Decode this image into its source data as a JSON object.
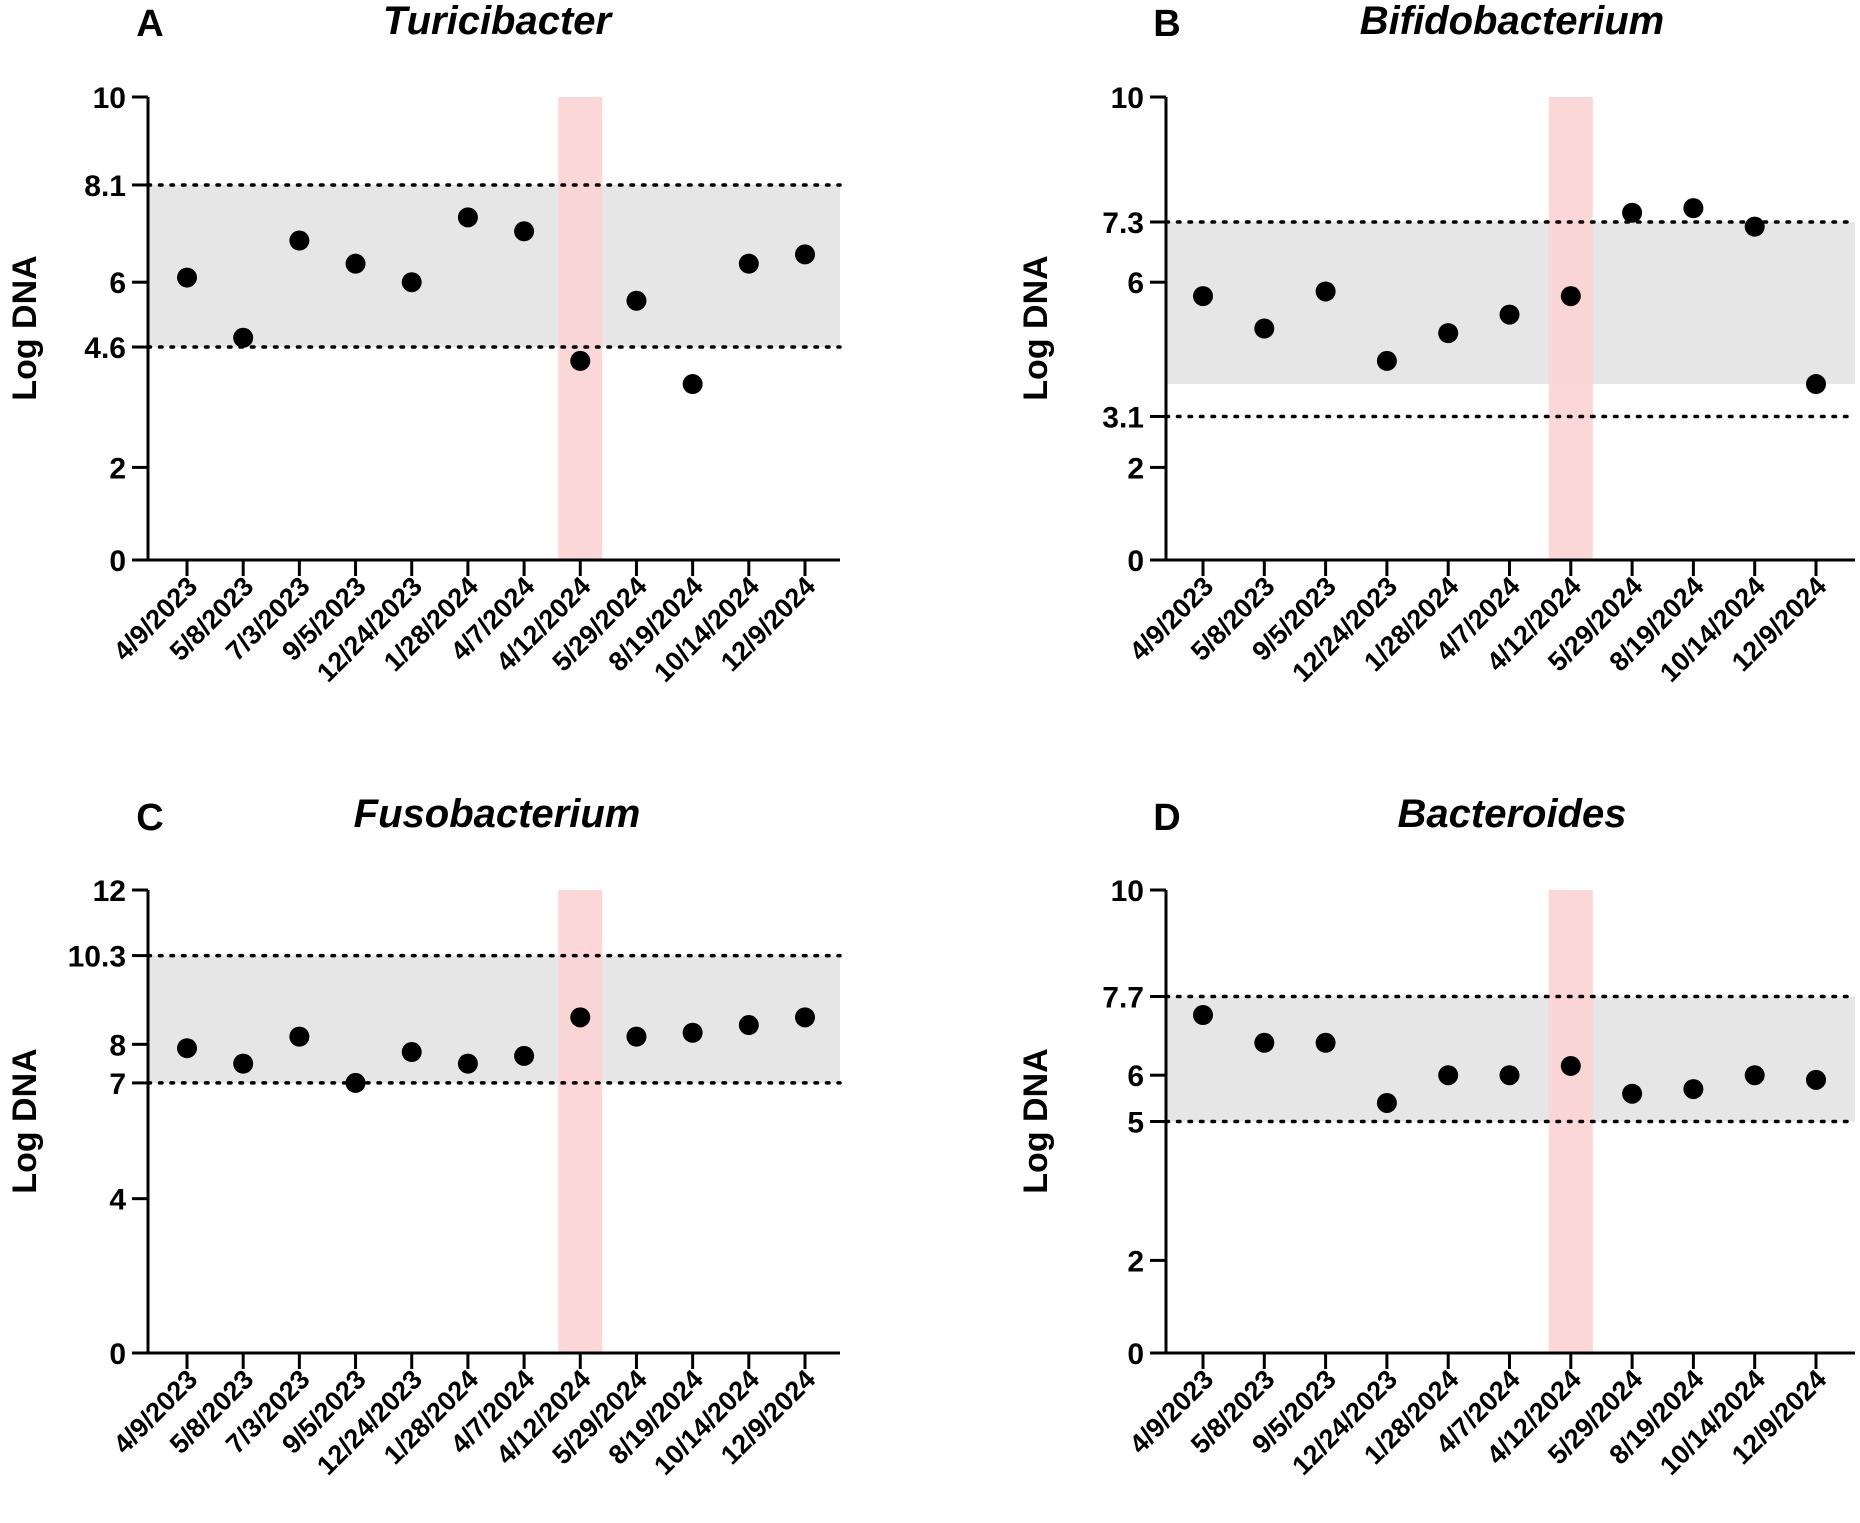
{
  "chart_data": [
    {
      "panel": "A",
      "type": "scatter",
      "title": "Turicibacter",
      "ylabel": "Log DNA",
      "xlabel": "",
      "ylim": [
        0,
        10
      ],
      "yticks": [
        0,
        2,
        4.6,
        6,
        8.1,
        10
      ],
      "reference_range": [
        4.6,
        8.1
      ],
      "highlight_category": "4/12/2024",
      "categories": [
        "4/9/2023",
        "5/8/2023",
        "7/3/2023",
        "9/5/2023",
        "12/24/2023",
        "1/28/2024",
        "4/7/2024",
        "4/12/2024",
        "5/29/2024",
        "8/19/2024",
        "10/14/2024",
        "12/9/2024"
      ],
      "values": [
        6.1,
        4.8,
        6.9,
        6.4,
        6.0,
        7.4,
        7.1,
        4.3,
        5.6,
        3.8,
        6.4,
        6.6
      ]
    },
    {
      "panel": "B",
      "type": "scatter",
      "title": "Bifidobacterium",
      "ylabel": "Log DNA",
      "xlabel": "",
      "ylim": [
        0,
        10
      ],
      "yticks": [
        0,
        2,
        3.1,
        6,
        7.3,
        10
      ],
      "reference_range": [
        3.1,
        7.3
      ],
      "highlight_category": "4/12/2024",
      "categories": [
        "4/9/2023",
        "5/8/2023",
        "9/5/2023",
        "12/24/2023",
        "1/28/2024",
        "4/7/2024",
        "4/12/2024",
        "5/29/2024",
        "8/19/2024",
        "10/14/2024",
        "12/9/2024"
      ],
      "values": [
        5.7,
        5.0,
        5.8,
        4.3,
        4.9,
        5.3,
        5.7,
        7.5,
        7.6,
        7.2,
        3.8
      ]
    },
    {
      "panel": "C",
      "type": "scatter",
      "title": "Fusobacterium",
      "ylabel": "Log DNA",
      "xlabel": "",
      "ylim": [
        0,
        12
      ],
      "yticks": [
        0,
        4,
        7,
        8,
        10.3,
        12
      ],
      "reference_range": [
        7,
        10.3
      ],
      "highlight_category": "4/12/2024",
      "categories": [
        "4/9/2023",
        "5/8/2023",
        "7/3/2023",
        "9/5/2023",
        "12/24/2023",
        "1/28/2024",
        "4/7/2024",
        "4/12/2024",
        "5/29/2024",
        "8/19/2024",
        "10/14/2024",
        "12/9/2024"
      ],
      "values": [
        7.9,
        7.5,
        8.2,
        7.0,
        7.8,
        7.5,
        7.7,
        8.7,
        8.2,
        8.3,
        8.5,
        8.7
      ]
    },
    {
      "panel": "D",
      "type": "scatter",
      "title": "Bacteroides",
      "ylabel": "Log DNA",
      "xlabel": "",
      "ylim": [
        0,
        10
      ],
      "yticks": [
        0,
        2,
        5,
        6,
        7.7,
        10
      ],
      "reference_range": [
        5,
        7.7
      ],
      "highlight_category": "4/12/2024",
      "categories": [
        "4/9/2023",
        "5/8/2023",
        "9/5/2023",
        "12/24/2023",
        "1/28/2024",
        "4/7/2024",
        "4/12/2024",
        "5/29/2024",
        "8/19/2024",
        "10/14/2024",
        "12/9/2024"
      ],
      "values": [
        7.3,
        6.7,
        6.7,
        5.4,
        6.0,
        6.0,
        6.2,
        5.6,
        5.7,
        6.0,
        5.9
      ]
    }
  ],
  "colors": {
    "reference_band": "#e6e6e6",
    "highlight_band": "#fbd3d3",
    "marker": "#000000",
    "axis": "#000000"
  }
}
